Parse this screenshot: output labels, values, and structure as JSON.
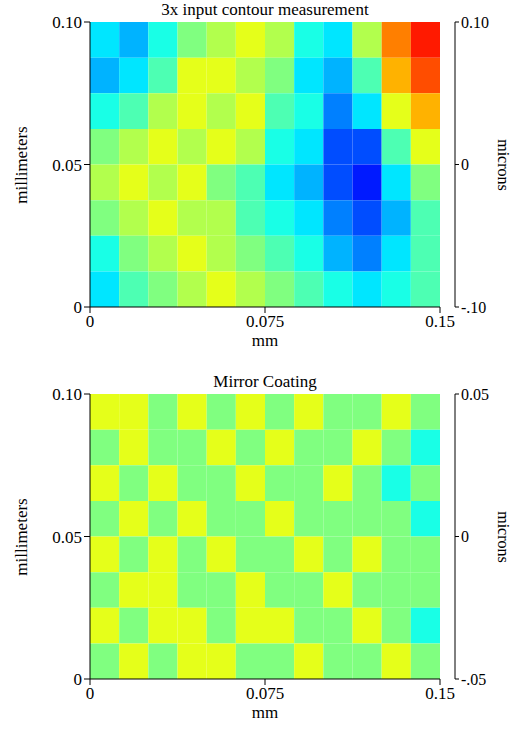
{
  "chart_data": [
    {
      "type": "heatmap",
      "title": "3x input contour measurement",
      "xlabel": "mm",
      "ylabel": "millimeters",
      "xlim": [
        0,
        0.15
      ],
      "xticks": [
        0,
        0.075,
        0.15
      ],
      "ylim": [
        0,
        0.1
      ],
      "yticks": [
        0,
        0.05,
        {
          "value": 0.1,
          "label": "0.10"
        }
      ],
      "cells": [
        [
          -0.03,
          -0.04,
          -0.02,
          0.0,
          0.01,
          0.02,
          0.01,
          -0.02,
          -0.03,
          0.01,
          0.05,
          0.07
        ],
        [
          -0.04,
          -0.03,
          -0.01,
          0.02,
          0.02,
          0.01,
          0.0,
          -0.03,
          -0.04,
          -0.01,
          0.04,
          0.06
        ],
        [
          -0.02,
          -0.01,
          0.01,
          0.02,
          0.01,
          0.02,
          -0.01,
          -0.02,
          -0.05,
          -0.03,
          0.02,
          0.04
        ],
        [
          0.0,
          0.01,
          0.02,
          0.01,
          0.02,
          0.01,
          -0.02,
          -0.03,
          -0.06,
          -0.06,
          -0.01,
          0.02
        ],
        [
          0.01,
          0.02,
          0.01,
          0.02,
          0.0,
          -0.01,
          -0.03,
          -0.04,
          -0.06,
          -0.07,
          -0.03,
          0.0
        ],
        [
          0.0,
          0.01,
          0.02,
          0.01,
          0.01,
          -0.01,
          -0.02,
          -0.03,
          -0.05,
          -0.06,
          -0.04,
          -0.01
        ],
        [
          -0.02,
          0.0,
          0.01,
          0.02,
          0.01,
          0.0,
          -0.01,
          -0.02,
          -0.04,
          -0.05,
          -0.03,
          -0.01
        ],
        [
          -0.03,
          -0.01,
          0.0,
          0.01,
          0.02,
          0.01,
          0.0,
          -0.01,
          -0.02,
          -0.03,
          -0.02,
          -0.01
        ]
      ],
      "color_range": [
        -0.1,
        0.1
      ],
      "color_ticks": [
        {
          "value": 0.1,
          "label": "0.10"
        },
        0,
        {
          "value": -0.1,
          "label": "-.10"
        }
      ],
      "color_label": "microns"
    },
    {
      "type": "heatmap",
      "title": "Mirror Coating",
      "xlabel": "mm",
      "ylabel": "millimeters",
      "xlim": [
        0,
        0.15
      ],
      "xticks": [
        0,
        0.075,
        0.15
      ],
      "ylim": [
        0,
        0.1
      ],
      "yticks": [
        0,
        0.05,
        {
          "value": 0.1,
          "label": "0.10"
        }
      ],
      "cells": [
        [
          0.01,
          0.01,
          0.0,
          0.01,
          0.0,
          0.01,
          0.0,
          0.01,
          0.0,
          0.0,
          0.01,
          0.0
        ],
        [
          0.0,
          0.01,
          0.0,
          0.0,
          0.01,
          0.0,
          0.01,
          0.0,
          0.0,
          0.01,
          0.0,
          -0.01
        ],
        [
          0.01,
          0.0,
          0.01,
          0.0,
          0.0,
          0.01,
          0.0,
          0.0,
          0.01,
          0.0,
          -0.01,
          0.0
        ],
        [
          0.0,
          0.01,
          0.0,
          0.01,
          0.0,
          0.0,
          0.01,
          0.0,
          0.0,
          0.0,
          0.0,
          -0.01
        ],
        [
          0.01,
          0.0,
          0.01,
          0.0,
          0.01,
          0.0,
          0.0,
          0.01,
          0.0,
          0.01,
          0.0,
          0.0
        ],
        [
          0.0,
          0.01,
          0.01,
          0.0,
          0.0,
          0.01,
          0.0,
          0.0,
          0.01,
          0.0,
          0.0,
          0.0
        ],
        [
          0.01,
          0.0,
          0.01,
          0.01,
          0.0,
          0.01,
          0.01,
          0.0,
          0.0,
          0.01,
          0.0,
          -0.01
        ],
        [
          0.0,
          0.01,
          0.0,
          0.01,
          0.01,
          0.0,
          0.0,
          0.01,
          0.0,
          0.0,
          0.01,
          0.0
        ]
      ],
      "color_range": [
        -0.05,
        0.05
      ],
      "color_ticks": [
        0.05,
        0,
        {
          "value": -0.05,
          "label": "-.05"
        }
      ],
      "color_label": "microns"
    }
  ]
}
